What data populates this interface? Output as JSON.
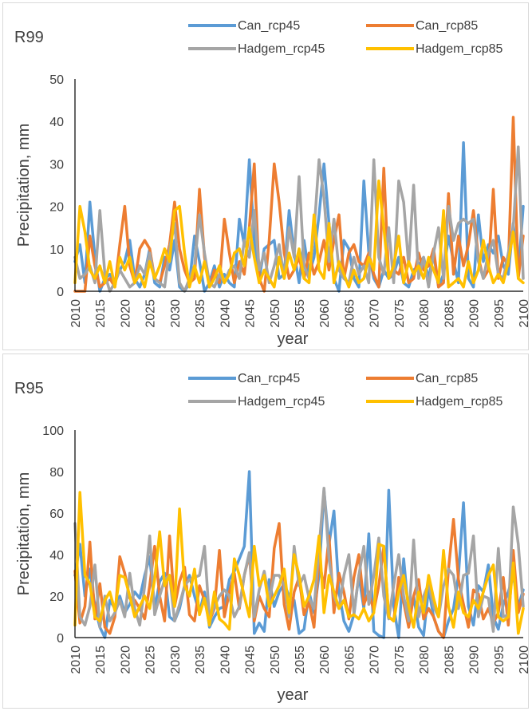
{
  "chart_data": [
    {
      "type": "line",
      "panel_label": "R99",
      "xlabel": "year",
      "ylabel": "Precipitation, mm",
      "ylim": [
        0,
        50
      ],
      "yticks": [
        0,
        10,
        20,
        30,
        40,
        50
      ],
      "xlim": [
        2010,
        2100
      ],
      "xticks": [
        2010,
        2015,
        2020,
        2025,
        2030,
        2035,
        2040,
        2045,
        2050,
        2055,
        2060,
        2065,
        2070,
        2075,
        2080,
        2085,
        2090,
        2095,
        2100
      ],
      "legend_position": "top",
      "grid": false,
      "x": [
        2010,
        2011,
        2012,
        2013,
        2014,
        2015,
        2016,
        2017,
        2018,
        2019,
        2020,
        2021,
        2022,
        2023,
        2024,
        2025,
        2026,
        2027,
        2028,
        2029,
        2030,
        2031,
        2032,
        2033,
        2034,
        2035,
        2036,
        2037,
        2038,
        2039,
        2040,
        2041,
        2042,
        2043,
        2044,
        2045,
        2046,
        2047,
        2048,
        2049,
        2050,
        2051,
        2052,
        2053,
        2054,
        2055,
        2056,
        2057,
        2058,
        2059,
        2060,
        2061,
        2062,
        2063,
        2064,
        2065,
        2066,
        2067,
        2068,
        2069,
        2070,
        2071,
        2072,
        2073,
        2074,
        2075,
        2076,
        2077,
        2078,
        2079,
        2080,
        2081,
        2082,
        2083,
        2084,
        2085,
        2086,
        2087,
        2088,
        2089,
        2090,
        2091,
        2092,
        2093,
        2094,
        2095,
        2096,
        2097,
        2098,
        2099,
        2100
      ],
      "series": [
        {
          "name": "Can_rcp45",
          "color": "#5B9BD5",
          "values": [
            7,
            11,
            2,
            21,
            8,
            0,
            3,
            4,
            2,
            5,
            7,
            12,
            3,
            1,
            4,
            10,
            2,
            1,
            8,
            5,
            12,
            1,
            0,
            2,
            13,
            7,
            0,
            2,
            6,
            1,
            4,
            2,
            1,
            17,
            11,
            31,
            12,
            3,
            10,
            11,
            12,
            3,
            4,
            19,
            9,
            2,
            12,
            4,
            8,
            18,
            30,
            16,
            3,
            0,
            12,
            10,
            3,
            1,
            26,
            9,
            3,
            1,
            5,
            3,
            4,
            8,
            2,
            1,
            5,
            6,
            8,
            3,
            9,
            1,
            4,
            13,
            7,
            2,
            35,
            3,
            1,
            18,
            7,
            11,
            9,
            13,
            6,
            4,
            16,
            4,
            20
          ]
        },
        {
          "name": "Can_rcp85",
          "color": "#ED7D31",
          "values": [
            0,
            0,
            0,
            13,
            6,
            1,
            2,
            3,
            1,
            11,
            20,
            6,
            2,
            10,
            12,
            10,
            3,
            2,
            6,
            11,
            21,
            10,
            5,
            2,
            3,
            24,
            8,
            1,
            5,
            2,
            17,
            9,
            2,
            7,
            4,
            15,
            30,
            3,
            0,
            12,
            30,
            21,
            9,
            3,
            5,
            8,
            3,
            9,
            4,
            7,
            12,
            5,
            12,
            18,
            3,
            9,
            11,
            7,
            6,
            9,
            4,
            1,
            29,
            3,
            5,
            4,
            8,
            2,
            3,
            9,
            5,
            6,
            10,
            1,
            2,
            23,
            4,
            13,
            6,
            11,
            19,
            8,
            3,
            5,
            24,
            3,
            8,
            6,
            41,
            3,
            13
          ]
        },
        {
          "name": "Hadgem_rcp45",
          "color": "#A5A5A5",
          "values": [
            8,
            3,
            4,
            6,
            2,
            19,
            4,
            0,
            2,
            5,
            3,
            1,
            2,
            6,
            4,
            9,
            3,
            2,
            1,
            10,
            16,
            2,
            0,
            3,
            6,
            18,
            9,
            2,
            1,
            4,
            2,
            5,
            6,
            3,
            12,
            8,
            19,
            5,
            9,
            2,
            6,
            11,
            3,
            15,
            8,
            27,
            6,
            3,
            14,
            31,
            22,
            7,
            17,
            5,
            3,
            2,
            8,
            4,
            6,
            2,
            31,
            8,
            4,
            15,
            2,
            26,
            21,
            6,
            25,
            3,
            8,
            1,
            9,
            15,
            3,
            20,
            12,
            16,
            17,
            16,
            17,
            7,
            3,
            9,
            12,
            4,
            3,
            9,
            15,
            34,
            3
          ]
        },
        {
          "name": "Hadgem_rcp85",
          "color": "#FFC000",
          "values": [
            2,
            20,
            14,
            5,
            3,
            6,
            2,
            7,
            1,
            8,
            5,
            8,
            2,
            4,
            1,
            7,
            3,
            6,
            10,
            7,
            19,
            20,
            9,
            1,
            6,
            2,
            7,
            1,
            3,
            6,
            2,
            4,
            9,
            10,
            6,
            15,
            8,
            2,
            5,
            3,
            1,
            8,
            3,
            9,
            5,
            10,
            3,
            2,
            18,
            5,
            3,
            16,
            2,
            7,
            4,
            1,
            5,
            2,
            3,
            8,
            5,
            26,
            15,
            3,
            6,
            13,
            2,
            7,
            4,
            6,
            3,
            8,
            5,
            2,
            19,
            1,
            2,
            3,
            1,
            7,
            2,
            5,
            12,
            6,
            2,
            4,
            2,
            7,
            14,
            3,
            2
          ]
        }
      ]
    },
    {
      "type": "line",
      "panel_label": "R95",
      "xlabel": "year",
      "ylabel": "Precipitation, mm",
      "ylim": [
        0,
        100
      ],
      "yticks": [
        0,
        20,
        40,
        60,
        80,
        100
      ],
      "xlim": [
        2010,
        2100
      ],
      "xticks": [
        2010,
        2015,
        2020,
        2025,
        2030,
        2035,
        2040,
        2045,
        2050,
        2055,
        2060,
        2065,
        2070,
        2075,
        2080,
        2085,
        2090,
        2095,
        2100
      ],
      "legend_position": "top",
      "grid": false,
      "x": [
        2010,
        2011,
        2012,
        2013,
        2014,
        2015,
        2016,
        2017,
        2018,
        2019,
        2020,
        2021,
        2022,
        2023,
        2024,
        2025,
        2026,
        2027,
        2028,
        2029,
        2030,
        2031,
        2032,
        2033,
        2034,
        2035,
        2036,
        2037,
        2038,
        2039,
        2040,
        2041,
        2042,
        2043,
        2044,
        2045,
        2046,
        2047,
        2048,
        2049,
        2050,
        2051,
        2052,
        2053,
        2054,
        2055,
        2056,
        2057,
        2058,
        2059,
        2060,
        2061,
        2062,
        2063,
        2064,
        2065,
        2066,
        2067,
        2068,
        2069,
        2070,
        2071,
        2072,
        2073,
        2074,
        2075,
        2076,
        2077,
        2078,
        2079,
        2080,
        2081,
        2082,
        2083,
        2084,
        2085,
        2086,
        2087,
        2088,
        2089,
        2090,
        2091,
        2092,
        2093,
        2094,
        2095,
        2096,
        2097,
        2098,
        2099,
        2100
      ],
      "series": [
        {
          "name": "Can_rcp45",
          "color": "#5B9BD5",
          "values": [
            30,
            45,
            20,
            33,
            15,
            5,
            0,
            18,
            14,
            20,
            12,
            16,
            22,
            19,
            30,
            39,
            14,
            27,
            31,
            10,
            8,
            14,
            25,
            30,
            20,
            12,
            22,
            5,
            10,
            14,
            15,
            28,
            32,
            38,
            44,
            80,
            2,
            7,
            3,
            28,
            15,
            22,
            26,
            20,
            18,
            2,
            4,
            22,
            12,
            30,
            71,
            45,
            61,
            22,
            8,
            3,
            11,
            30,
            14,
            50,
            3,
            1,
            0,
            71,
            15,
            0,
            38,
            12,
            20,
            5,
            1,
            24,
            10,
            3,
            0,
            8,
            14,
            30,
            65,
            15,
            6,
            25,
            22,
            35,
            10,
            4,
            16,
            22,
            30,
            15,
            23
          ]
        },
        {
          "name": "Can_rcp85",
          "color": "#ED7D31",
          "values": [
            32,
            7,
            15,
            46,
            9,
            26,
            5,
            2,
            10,
            39,
            31,
            19,
            18,
            14,
            9,
            25,
            44,
            20,
            8,
            49,
            15,
            27,
            34,
            11,
            8,
            25,
            18,
            8,
            14,
            42,
            10,
            22,
            31,
            14,
            30,
            40,
            8,
            20,
            14,
            10,
            43,
            55,
            16,
            4,
            22,
            29,
            11,
            17,
            5,
            38,
            24,
            49,
            12,
            31,
            22,
            9,
            29,
            40,
            16,
            22,
            13,
            25,
            44,
            10,
            8,
            29,
            17,
            5,
            20,
            28,
            9,
            14,
            10,
            3,
            0,
            33,
            57,
            28,
            16,
            5,
            23,
            21,
            9,
            14,
            7,
            12,
            29,
            6,
            42,
            12,
            21
          ]
        },
        {
          "name": "Hadgem_rcp45",
          "color": "#A5A5A5",
          "values": [
            55,
            10,
            6,
            15,
            35,
            5,
            20,
            8,
            12,
            18,
            10,
            31,
            14,
            6,
            25,
            49,
            11,
            20,
            28,
            30,
            8,
            16,
            25,
            28,
            29,
            30,
            44,
            9,
            15,
            20,
            23,
            20,
            10,
            15,
            30,
            41,
            10,
            23,
            32,
            18,
            30,
            30,
            25,
            10,
            44,
            25,
            30,
            19,
            14,
            43,
            72,
            38,
            20,
            14,
            30,
            40,
            12,
            30,
            44,
            16,
            30,
            48,
            20,
            9,
            25,
            40,
            20,
            8,
            47,
            10,
            20,
            26,
            15,
            10,
            25,
            33,
            30,
            14,
            30,
            31,
            49,
            10,
            20,
            19,
            3,
            43,
            10,
            11,
            63,
            45,
            15
          ]
        },
        {
          "name": "Hadgem_rcp85",
          "color": "#FFC000",
          "values": [
            6,
            70,
            30,
            26,
            10,
            8,
            18,
            22,
            13,
            30,
            29,
            20,
            10,
            15,
            20,
            14,
            28,
            51,
            25,
            30,
            15,
            62,
            25,
            20,
            33,
            11,
            19,
            6,
            22,
            9,
            7,
            4,
            38,
            30,
            20,
            10,
            44,
            25,
            30,
            15,
            20,
            25,
            33,
            12,
            40,
            30,
            15,
            20,
            28,
            49,
            12,
            30,
            22,
            14,
            18,
            10,
            11,
            9,
            14,
            8,
            12,
            45,
            44,
            10,
            8,
            22,
            30,
            15,
            5,
            22,
            12,
            30,
            19,
            10,
            42,
            15,
            5,
            22,
            12,
            10,
            18,
            14,
            22,
            30,
            35,
            10,
            8,
            10,
            36,
            2,
            14
          ]
        }
      ]
    }
  ]
}
